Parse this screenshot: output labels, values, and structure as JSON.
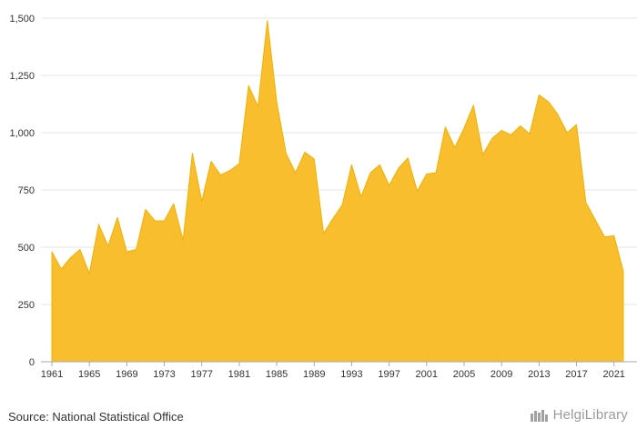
{
  "chart_data": {
    "type": "area",
    "x": [
      1961,
      1962,
      1963,
      1964,
      1965,
      1966,
      1967,
      1968,
      1969,
      1970,
      1971,
      1972,
      1973,
      1974,
      1975,
      1976,
      1977,
      1978,
      1979,
      1980,
      1981,
      1982,
      1983,
      1984,
      1985,
      1986,
      1987,
      1988,
      1989,
      1990,
      1991,
      1992,
      1993,
      1994,
      1995,
      1996,
      1997,
      1998,
      1999,
      2000,
      2001,
      2002,
      2003,
      2004,
      2005,
      2006,
      2007,
      2008,
      2009,
      2010,
      2011,
      2012,
      2013,
      2014,
      2015,
      2016,
      2017,
      2018,
      2019,
      2020,
      2021,
      2022
    ],
    "values": [
      480,
      405,
      455,
      490,
      385,
      600,
      505,
      630,
      480,
      490,
      665,
      615,
      615,
      690,
      530,
      910,
      700,
      875,
      815,
      835,
      865,
      1205,
      1115,
      1490,
      1135,
      910,
      825,
      915,
      885,
      560,
      625,
      685,
      860,
      720,
      825,
      860,
      770,
      845,
      890,
      745,
      820,
      825,
      1025,
      935,
      1020,
      1120,
      905,
      975,
      1010,
      990,
      1030,
      995,
      1165,
      1135,
      1080,
      1000,
      1035,
      695,
      620,
      545,
      550,
      395
    ],
    "xticks": [
      "1961",
      "1965",
      "1969",
      "1973",
      "1977",
      "1981",
      "1985",
      "1989",
      "1993",
      "1997",
      "2001",
      "2005",
      "2009",
      "2013",
      "2017",
      "2021"
    ],
    "yticks": [
      "0",
      "250",
      "500",
      "750",
      "1,000",
      "1,250",
      "1,500"
    ],
    "ylim": [
      0,
      1500
    ],
    "grid": true,
    "color": "#F9BE2E",
    "stroke": "#F0B000"
  },
  "footer": {
    "source": "Source: National Statistical Office",
    "logo_text": "HelgiLibrary"
  }
}
